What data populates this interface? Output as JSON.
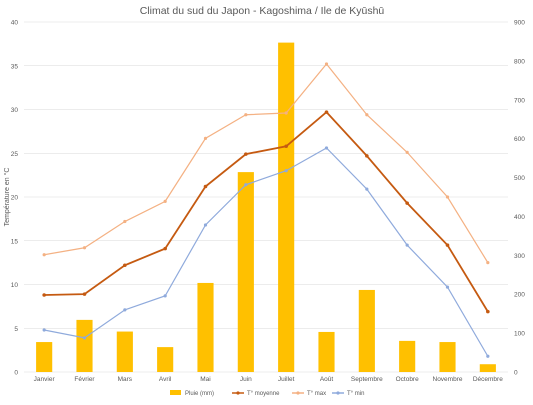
{
  "chart_data": {
    "type": "bar",
    "title": "Climat du sud du Japon - Kagoshima / Ile de Kyūshū",
    "ylabel": "Température en °C",
    "y2label": "",
    "categories": [
      "Janvier",
      "Février",
      "Mars",
      "Avril",
      "Mai",
      "Juin",
      "Juillet",
      "Août",
      "Septembre",
      "Octobre",
      "Novembre",
      "Décembre"
    ],
    "ylim": [
      0,
      40
    ],
    "y2lim": [
      0,
      900
    ],
    "yticks": [
      "0",
      "5",
      "10",
      "15",
      "20",
      "25",
      "30",
      "35",
      "40"
    ],
    "y2ticks": [
      "0",
      "100",
      "200",
      "300",
      "400",
      "500",
      "600",
      "700",
      "800",
      "900"
    ],
    "grid": true,
    "legend_position": "bottom",
    "series": [
      {
        "name": "Pluie (mm)",
        "type": "bar",
        "axis": "right",
        "color": "#FFC000",
        "values": [
          77,
          134,
          104,
          64,
          229,
          514,
          847,
          103,
          211,
          80,
          77,
          20
        ]
      },
      {
        "name": "T° moyenne",
        "type": "line",
        "axis": "left",
        "color": "#C55A11",
        "values": [
          8.8,
          8.9,
          12.2,
          14.1,
          21.2,
          24.9,
          25.8,
          29.7,
          24.7,
          19.3,
          14.5,
          6.9
        ]
      },
      {
        "name": "T° max",
        "type": "line",
        "axis": "left",
        "color": "#F4B183",
        "values": [
          13.4,
          14.2,
          17.2,
          19.5,
          26.7,
          29.4,
          29.6,
          35.2,
          29.4,
          25.1,
          20.0,
          12.5
        ]
      },
      {
        "name": "T° min",
        "type": "line",
        "axis": "left",
        "color": "#8FAADC",
        "values": [
          4.8,
          3.9,
          7.1,
          8.7,
          16.8,
          21.4,
          23.0,
          25.6,
          20.9,
          14.5,
          9.7,
          1.8
        ]
      }
    ]
  }
}
